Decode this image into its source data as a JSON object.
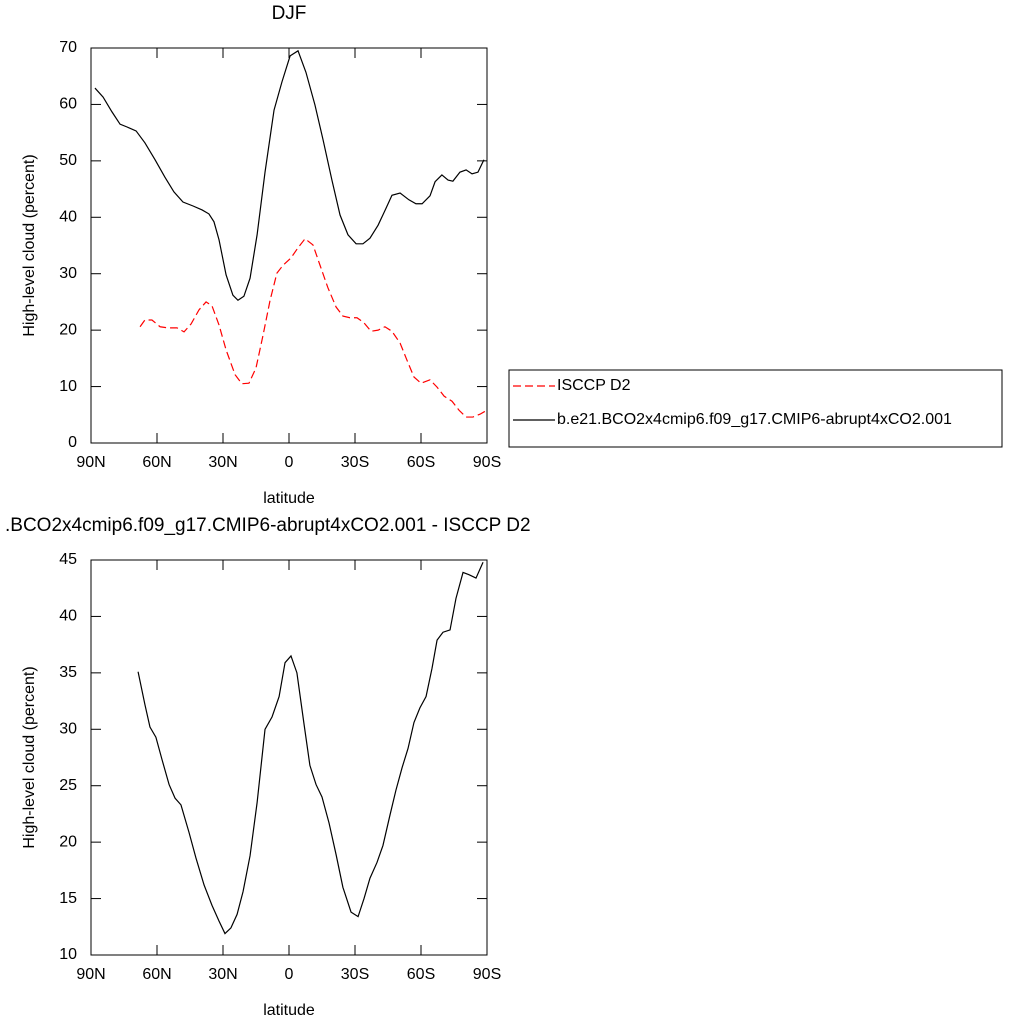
{
  "chart_data": [
    {
      "type": "line",
      "title": "DJF",
      "xlabel": "latitude",
      "ylabel": "High-level cloud (percent)",
      "xlim": [
        90,
        -90
      ],
      "xticks": [
        {
          "value": 90,
          "label": "90N"
        },
        {
          "value": 60,
          "label": "60N"
        },
        {
          "value": 30,
          "label": "30N"
        },
        0,
        {
          "value": -30,
          "label": "30S"
        },
        {
          "value": -60,
          "label": "60S"
        },
        {
          "value": -90,
          "label": "90S"
        }
      ],
      "ylim": [
        0,
        70
      ],
      "yticks": [
        0,
        10,
        20,
        30,
        40,
        50,
        60,
        70
      ],
      "legend": "right",
      "series": [
        {
          "name": "ISCCP D2",
          "color": "#ff0000",
          "dashed": true,
          "x": [
            67.7,
            65.5,
            62.3,
            58.6,
            55,
            50.9,
            47.7,
            44.5,
            40.9,
            37.7,
            35,
            31.8,
            28.6,
            24.5,
            21.4,
            18.2,
            15,
            11.8,
            8.6,
            5.5,
            2.7,
            -0.9,
            -4.1,
            -7.3,
            -10.9,
            -14.1,
            -17.7,
            -21.4,
            -24.5,
            -27.7,
            -30.9,
            -34.1,
            -37.3,
            -40.5,
            -43.6,
            -46.8,
            -50.5,
            -53.6,
            -56.8,
            -60,
            -64.1,
            -67.3,
            -70.5,
            -74.1,
            -77.3,
            -80.5,
            -83.6,
            -86.8,
            -89.5
          ],
          "values": [
            20.6,
            21.8,
            21.8,
            20.6,
            20.4,
            20.4,
            19.7,
            21.1,
            23.6,
            25,
            24.3,
            20.9,
            16.5,
            12.1,
            10.5,
            10.6,
            13.3,
            19.1,
            25.3,
            30.1,
            31.5,
            32.8,
            34.6,
            36.2,
            35.1,
            31.5,
            27.5,
            24.1,
            22.5,
            22.2,
            22.2,
            21.3,
            19.8,
            20,
            20.6,
            19.8,
            17.7,
            14.7,
            11.7,
            10.6,
            11.2,
            9.9,
            8.3,
            7.4,
            5.8,
            4.6,
            4.6,
            5.1,
            5.7
          ]
        },
        {
          "name": "b.e21.BCO2x4cmip6.f09_g17.CMIP6-abrupt4xCO2.001",
          "color": "#000000",
          "dashed": false,
          "x": [
            88.2,
            84.5,
            80.5,
            76.8,
            73.6,
            69.5,
            65.5,
            60.9,
            56.4,
            52.3,
            48.2,
            43.6,
            39.5,
            36.4,
            34.1,
            31.8,
            28.6,
            25.5,
            23.2,
            20.5,
            17.7,
            14.5,
            10.9,
            6.8,
            3.2,
            -0.5,
            -4.1,
            -7.7,
            -11.8,
            -15.5,
            -19.5,
            -23.2,
            -26.8,
            -30.5,
            -33.6,
            -36.8,
            -40.5,
            -44.1,
            -46.8,
            -50.5,
            -54.5,
            -57.7,
            -60.5,
            -64.1,
            -66.4,
            -69.5,
            -72.3,
            -74.5,
            -77.7,
            -80.5,
            -83.2,
            -85.9,
            -88.6
          ],
          "values": [
            62.9,
            61.3,
            58.7,
            56.5,
            56,
            55.3,
            53.2,
            50.2,
            47.1,
            44.5,
            42.7,
            42,
            41.3,
            40.6,
            39.2,
            36,
            29.8,
            26.2,
            25.3,
            26,
            29.2,
            36.9,
            48,
            59,
            64,
            68.6,
            69.5,
            65.7,
            59.9,
            53.7,
            46.6,
            40.4,
            36.9,
            35.3,
            35.3,
            36.3,
            38.6,
            41.6,
            43.9,
            44.3,
            43.1,
            42.4,
            42.4,
            43.8,
            46.3,
            47.5,
            46.6,
            46.4,
            48,
            48.4,
            47.7,
            48,
            50.2
          ]
        }
      ]
    },
    {
      "type": "line",
      "title": ".BCO2x4cmip6.f09_g17.CMIP6-abrupt4xCO2.001 - ISCCP D2",
      "xlabel": "latitude",
      "ylabel": "High-level cloud (percent)",
      "xlim": [
        90,
        -90
      ],
      "xticks": [
        {
          "value": 90,
          "label": "90N"
        },
        {
          "value": 60,
          "label": "60N"
        },
        {
          "value": 30,
          "label": "30N"
        },
        0,
        {
          "value": -30,
          "label": "30S"
        },
        {
          "value": -60,
          "label": "60S"
        },
        {
          "value": -90,
          "label": "90S"
        }
      ],
      "ylim": [
        10,
        45
      ],
      "yticks": [
        10,
        15,
        20,
        25,
        30,
        35,
        40,
        45
      ],
      "series": [
        {
          "color": "#000000",
          "dashed": false,
          "x": [
            68.6,
            65.5,
            63.2,
            60.5,
            57.7,
            54.5,
            51.8,
            49.1,
            45.5,
            42.3,
            38.6,
            35,
            31.8,
            29.1,
            26.4,
            23.6,
            20.9,
            17.7,
            14.5,
            10.9,
            7.7,
            4.5,
            1.8,
            -0.9,
            -3.6,
            -6.8,
            -9.5,
            -12.3,
            -15,
            -18.2,
            -21.4,
            -24.5,
            -28.2,
            -31.4,
            -34.1,
            -36.8,
            -40,
            -42.7,
            -45.9,
            -48.6,
            -51.4,
            -54.1,
            -56.8,
            -59.5,
            -62.3,
            -65,
            -67.3,
            -70,
            -73.2,
            -75.9,
            -79.1,
            -81.8,
            -85,
            -88.2
          ],
          "values": [
            35.1,
            32.2,
            30.2,
            29.3,
            27.3,
            25.1,
            23.9,
            23.3,
            20.9,
            18.6,
            16.2,
            14.4,
            13,
            11.9,
            12.4,
            13.6,
            15.6,
            18.8,
            23.5,
            30,
            31.1,
            32.9,
            35.9,
            36.5,
            35,
            30.5,
            26.8,
            25.1,
            24,
            21.7,
            18.9,
            16,
            13.8,
            13.4,
            15,
            16.8,
            18.2,
            19.7,
            22.4,
            24.6,
            26.6,
            28.3,
            30.6,
            31.9,
            32.9,
            35.4,
            37.9,
            38.6,
            38.8,
            41.6,
            43.9,
            43.7,
            43.4,
            44.8
          ]
        }
      ]
    }
  ]
}
